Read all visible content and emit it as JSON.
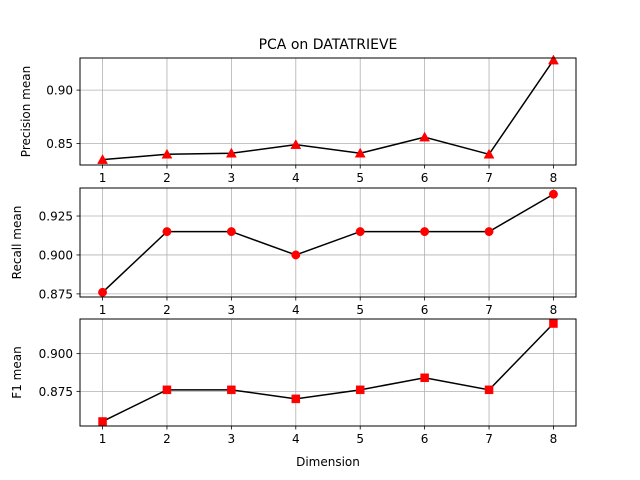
{
  "chart_data": [
    {
      "type": "line",
      "title": "PCA on DATATRIEVE",
      "xlabel": "",
      "ylabel": "Precision mean",
      "x": [
        1,
        2,
        3,
        4,
        5,
        6,
        7,
        8
      ],
      "xticks": [
        "1",
        "2",
        "3",
        "4",
        "5",
        "6",
        "7",
        "8"
      ],
      "xlim": [
        0.65,
        8.35
      ],
      "ylim": [
        0.83,
        0.93
      ],
      "yticks": [
        0.85,
        0.9
      ],
      "ytick_labels": [
        "0.85",
        "0.90"
      ],
      "grid": true,
      "series": [
        {
          "values": [
            0.835,
            0.84,
            0.841,
            0.849,
            0.841,
            0.856,
            0.84,
            0.928
          ],
          "marker": "triangle",
          "line_color": "#000000",
          "marker_color": "#ff0000"
        }
      ]
    },
    {
      "type": "line",
      "title": "",
      "xlabel": "",
      "ylabel": "Recall mean",
      "x": [
        1,
        2,
        3,
        4,
        5,
        6,
        7,
        8
      ],
      "xticks": [
        "1",
        "2",
        "3",
        "4",
        "5",
        "6",
        "7",
        "8"
      ],
      "xlim": [
        0.65,
        8.35
      ],
      "ylim": [
        0.873,
        0.943
      ],
      "yticks": [
        0.875,
        0.9,
        0.925
      ],
      "ytick_labels": [
        "0.875",
        "0.900",
        "0.925"
      ],
      "grid": true,
      "series": [
        {
          "values": [
            0.876,
            0.915,
            0.915,
            0.9,
            0.915,
            0.915,
            0.915,
            0.939
          ],
          "marker": "circle",
          "line_color": "#000000",
          "marker_color": "#ff0000"
        }
      ]
    },
    {
      "type": "line",
      "title": "",
      "xlabel": "Dimension",
      "ylabel": "F1 mean",
      "x": [
        1,
        2,
        3,
        4,
        5,
        6,
        7,
        8
      ],
      "xticks": [
        "1",
        "2",
        "3",
        "4",
        "5",
        "6",
        "7",
        "8"
      ],
      "xlim": [
        0.65,
        8.35
      ],
      "ylim": [
        0.852,
        0.923
      ],
      "yticks": [
        0.875,
        0.9
      ],
      "ytick_labels": [
        "0.875",
        "0.900"
      ],
      "grid": true,
      "series": [
        {
          "values": [
            0.855,
            0.876,
            0.876,
            0.87,
            0.876,
            0.884,
            0.876,
            0.92
          ],
          "marker": "square",
          "line_color": "#000000",
          "marker_color": "#ff0000"
        }
      ]
    }
  ]
}
